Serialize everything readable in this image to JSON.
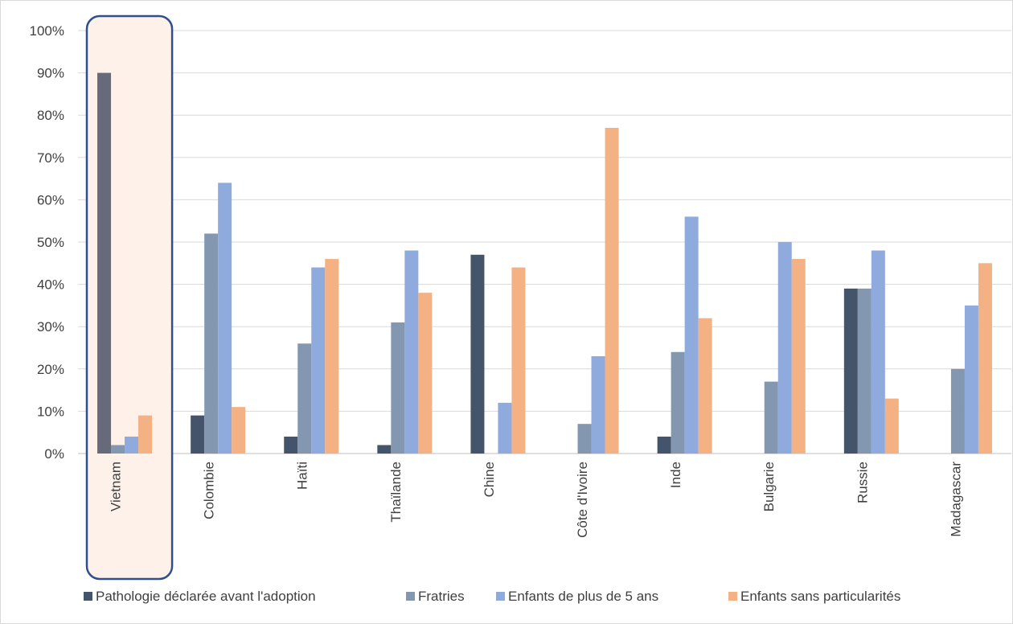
{
  "chart_data": {
    "type": "bar",
    "categories": [
      "Vietnam",
      "Colombie",
      "Haïti",
      "Thaïlande",
      "Chine",
      "Côte d'Ivoire",
      "Inde",
      "Bulgarie",
      "Russie",
      "Madagascar"
    ],
    "series": [
      {
        "name": "Pathologie déclarée avant l'adoption",
        "color": "#44546a",
        "values": [
          90,
          9,
          4,
          2,
          47,
          0,
          4,
          0,
          39,
          0
        ]
      },
      {
        "name": "Fratries",
        "color": "#8497b0",
        "values": [
          2,
          52,
          26,
          31,
          0,
          7,
          24,
          17,
          39,
          20
        ]
      },
      {
        "name": "Enfants de plus de 5 ans",
        "color": "#8faadc",
        "values": [
          4,
          64,
          44,
          48,
          12,
          23,
          56,
          50,
          48,
          35
        ]
      },
      {
        "name": "Enfants sans particularités",
        "color": "#f4b183",
        "values": [
          9,
          11,
          46,
          38,
          44,
          77,
          32,
          46,
          13,
          45
        ]
      }
    ],
    "ylim": [
      0,
      100
    ],
    "yticks": [
      "0%",
      "10%",
      "20%",
      "30%",
      "40%",
      "50%",
      "60%",
      "70%",
      "80%",
      "90%",
      "100%"
    ],
    "grid": true,
    "legend": "bottom",
    "highlight_category": "Vietnam",
    "highlight_fill": "#fdf1e9",
    "highlight_border": "#2f4f8f",
    "highlight_first_series_color": "#666a7a"
  }
}
